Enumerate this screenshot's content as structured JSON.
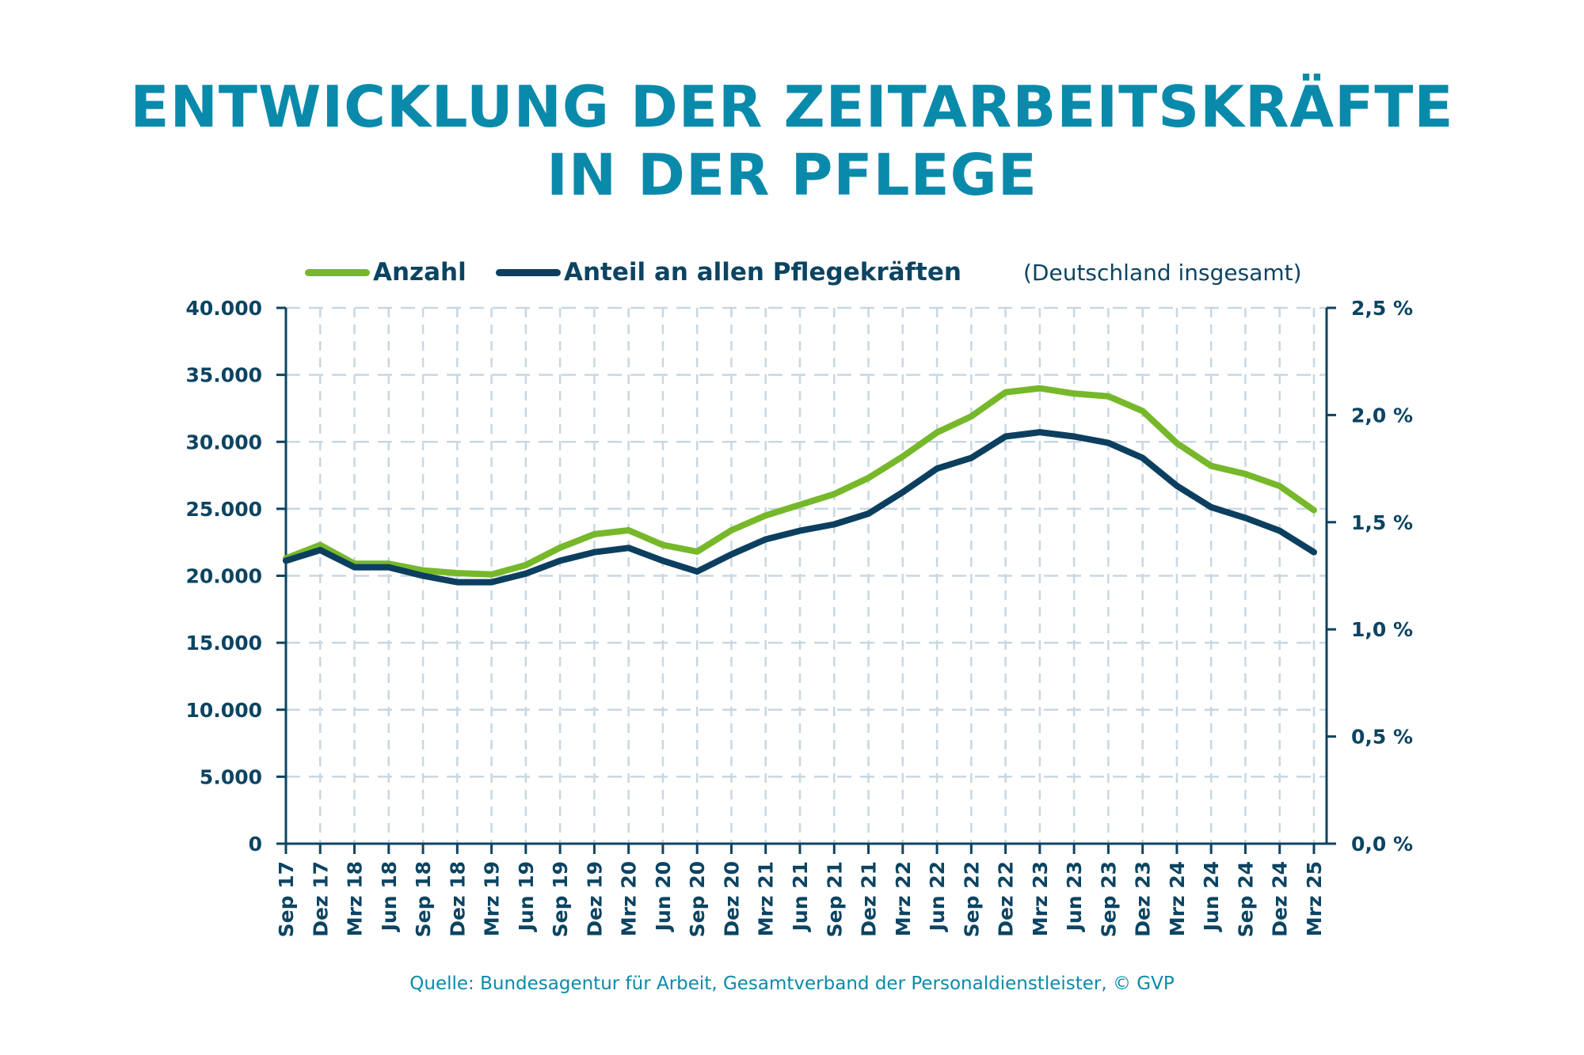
{
  "title": {
    "line1": "ENTWICKLUNG DER ZEITARBEITSKRÄFTE",
    "line2": "IN DER PFLEGE"
  },
  "legend": {
    "items": [
      {
        "label": "Anzahl",
        "color": "#76b82a"
      },
      {
        "label": "Anteil an allen Pflegekräften",
        "color": "#0c3f5f"
      }
    ],
    "note": "(Deutschland insgesamt)"
  },
  "source": "Quelle: Bundesagentur für Arbeit, Gesamtverband der Personaldienstleister, © GVP",
  "colors": {
    "title": "#0a8aab",
    "axis": "#0c4462",
    "grid": "#c8d7e2",
    "anzahl": "#76b82a",
    "anteil": "#0c3f5f"
  },
  "chart_data": {
    "type": "line",
    "title": "ENTWICKLUNG DER ZEITARBEITSKRÄFTE IN DER PFLEGE",
    "x": [
      "Sep 17",
      "Dez 17",
      "Mrz 18",
      "Jun 18",
      "Sep 18",
      "Dez 18",
      "Mrz 19",
      "Jun 19",
      "Sep 19",
      "Dez 19",
      "Mrz 20",
      "Jun 20",
      "Sep 20",
      "Dez 20",
      "Mrz 21",
      "Jun 21",
      "Sep 21",
      "Dez 21",
      "Mrz 22",
      "Jun 22",
      "Sep 22",
      "Dez 22",
      "Mrz 23",
      "Jun 23",
      "Sep 23",
      "Dez 23",
      "Mrz 24",
      "Jun 24",
      "Sep 24",
      "Dez 24",
      "Mrz 25"
    ],
    "series": [
      {
        "name": "Anzahl",
        "axis": "left",
        "values": [
          21300,
          22300,
          20900,
          20900,
          20400,
          20200,
          20100,
          20800,
          22100,
          23100,
          23400,
          22300,
          21800,
          23400,
          24500,
          25300,
          26100,
          27300,
          28900,
          30700,
          31900,
          33700,
          34000,
          33600,
          33400,
          32300,
          29900,
          28200,
          27600,
          26700,
          24900
        ]
      },
      {
        "name": "Anteil an allen Pflegekräften",
        "axis": "right",
        "unit": "%",
        "values": [
          1.32,
          1.37,
          1.29,
          1.29,
          1.25,
          1.22,
          1.22,
          1.26,
          1.32,
          1.36,
          1.38,
          1.32,
          1.27,
          1.35,
          1.42,
          1.46,
          1.49,
          1.54,
          1.64,
          1.75,
          1.8,
          1.9,
          1.92,
          1.9,
          1.87,
          1.8,
          1.67,
          1.57,
          1.52,
          1.46,
          1.36
        ]
      }
    ],
    "y_left": {
      "label": "",
      "range": [
        0,
        40000
      ],
      "ticks": [
        "0",
        "5.000",
        "10.000",
        "15.000",
        "20.000",
        "25.000",
        "30.000",
        "35.000",
        "40.000"
      ]
    },
    "y_right": {
      "label": "",
      "range": [
        0,
        2.5
      ],
      "ticks": [
        "0,0 %",
        "0,5 %",
        "1,0 %",
        "1,5 %",
        "2,0 %",
        "2,5 %"
      ]
    },
    "xlabel": "",
    "grid": true,
    "legend_position": "top"
  }
}
